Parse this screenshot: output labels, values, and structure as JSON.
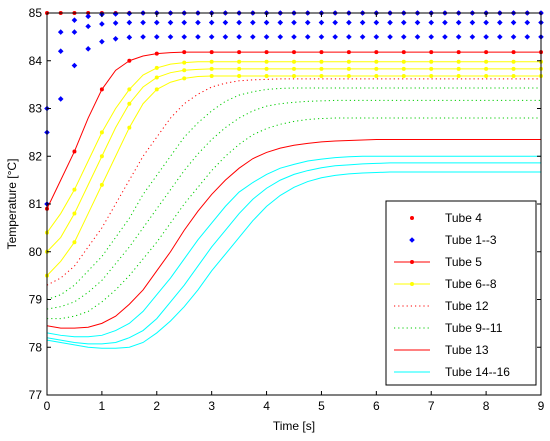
{
  "chart_data": {
    "type": "line",
    "title": "",
    "xlabel": "Time [s]",
    "ylabel": "Temperature [°C]",
    "xlim": [
      0,
      9
    ],
    "ylim": [
      77,
      85
    ],
    "xticks": [
      "0",
      "1",
      "2",
      "3",
      "4",
      "5",
      "6",
      "7",
      "8",
      "9"
    ],
    "yticks": [
      "77",
      "78",
      "79",
      "80",
      "81",
      "82",
      "83",
      "84",
      "85"
    ],
    "grid": false,
    "legend_position": "bottom-right",
    "legend": [
      {
        "label": "Tube 4",
        "color": "#ff0000",
        "line": "none",
        "marker": "dot"
      },
      {
        "label": "Tube 1--3",
        "color": "#0000ff",
        "line": "none",
        "marker": "diamond"
      },
      {
        "label": "Tube 5",
        "color": "#ff0000",
        "line": "solid",
        "marker": "dot"
      },
      {
        "label": "Tube 6--8",
        "color": "#ffff00",
        "line": "solid",
        "marker": "dot"
      },
      {
        "label": "Tube 12",
        "color": "#ff0000",
        "line": "dotted",
        "marker": "none"
      },
      {
        "label": "Tube 9--11",
        "color": "#00cc00",
        "line": "dotted",
        "marker": "none"
      },
      {
        "label": "Tube 13",
        "color": "#ff0000",
        "line": "solid",
        "marker": "none"
      },
      {
        "label": "Tube 14--16",
        "color": "#00ffff",
        "line": "solid",
        "marker": "none"
      }
    ],
    "x": [
      0,
      0.25,
      0.5,
      0.75,
      1,
      1.25,
      1.5,
      1.75,
      2,
      2.25,
      2.5,
      2.75,
      3,
      3.25,
      3.5,
      3.75,
      4,
      4.25,
      4.5,
      4.75,
      5,
      5.25,
      5.5,
      5.75,
      6,
      6.25,
      6.5,
      6.75,
      7,
      7.25,
      7.5,
      7.75,
      8,
      8.25,
      8.5,
      8.75,
      9
    ],
    "series": [
      {
        "legend_index": 0,
        "color": "#ff0000",
        "style": "markers",
        "marker": "dot",
        "values": [
          85.0,
          85.0,
          85.0,
          85.0,
          85.0,
          85.0,
          85.0,
          85.0,
          85.0,
          85.0,
          85.0,
          85.0,
          85.0,
          85.0,
          85.0,
          85.0,
          85.0,
          85.0,
          85.0,
          85.0,
          85.0,
          85.0,
          85.0,
          85.0,
          85.0,
          85.0,
          85.0,
          85.0,
          85.0,
          85.0,
          85.0,
          85.0,
          85.0,
          85.0,
          85.0,
          85.0,
          85.0
        ]
      },
      {
        "legend_index": 1,
        "color": "#0000ff",
        "style": "markers",
        "marker": "diamond",
        "values": [
          83.0,
          84.6,
          84.85,
          84.93,
          84.97,
          84.98,
          84.99,
          85.0,
          85.0,
          85.0,
          85.0,
          85.0,
          85.0,
          85.0,
          85.0,
          85.0,
          85.0,
          85.0,
          85.0,
          85.0,
          85.0,
          85.0,
          85.0,
          85.0,
          85.0,
          85.0,
          85.0,
          85.0,
          85.0,
          85.0,
          85.0,
          85.0,
          85.0,
          85.0,
          85.0,
          85.0,
          85.0
        ]
      },
      {
        "color": "#0000ff",
        "style": "markers",
        "marker": "diamond",
        "values": [
          82.5,
          84.2,
          84.6,
          84.72,
          84.77,
          84.79,
          84.8,
          84.8,
          84.8,
          84.8,
          84.8,
          84.8,
          84.8,
          84.8,
          84.8,
          84.8,
          84.8,
          84.8,
          84.8,
          84.8,
          84.8,
          84.8,
          84.8,
          84.8,
          84.8,
          84.8,
          84.8,
          84.8,
          84.8,
          84.8,
          84.8,
          84.8,
          84.8,
          84.8,
          84.8,
          84.8,
          84.8
        ]
      },
      {
        "color": "#0000ff",
        "style": "markers",
        "marker": "diamond",
        "values": [
          81.0,
          83.2,
          83.9,
          84.25,
          84.4,
          84.46,
          84.49,
          84.5,
          84.5,
          84.5,
          84.5,
          84.5,
          84.5,
          84.5,
          84.5,
          84.5,
          84.5,
          84.5,
          84.5,
          84.5,
          84.5,
          84.5,
          84.5,
          84.5,
          84.5,
          84.5,
          84.5,
          84.5,
          84.5,
          84.5,
          84.5,
          84.5,
          84.5,
          84.5,
          84.5,
          84.5,
          84.5
        ]
      },
      {
        "legend_index": 2,
        "color": "#ff0000",
        "style": "line-markers",
        "marker": "dot",
        "values": [
          80.9,
          81.5,
          82.1,
          82.8,
          83.4,
          83.8,
          84.0,
          84.1,
          84.15,
          84.17,
          84.18,
          84.18,
          84.18,
          84.18,
          84.18,
          84.18,
          84.18,
          84.18,
          84.18,
          84.18,
          84.18,
          84.18,
          84.18,
          84.18,
          84.18,
          84.18,
          84.18,
          84.18,
          84.18,
          84.18,
          84.18,
          84.18,
          84.18,
          84.18,
          84.18,
          84.18,
          84.18
        ]
      },
      {
        "legend_index": 3,
        "color": "#ffff00",
        "style": "line-markers",
        "marker": "dot",
        "values": [
          80.4,
          80.8,
          81.3,
          81.9,
          82.5,
          83.0,
          83.4,
          83.7,
          83.85,
          83.93,
          83.96,
          83.98,
          83.98,
          83.98,
          83.98,
          83.98,
          83.98,
          83.98,
          83.98,
          83.98,
          83.98,
          83.98,
          83.98,
          83.98,
          83.98,
          83.98,
          83.98,
          83.98,
          83.98,
          83.98,
          83.98,
          83.98,
          83.98,
          83.98,
          83.98,
          83.98,
          83.98
        ]
      },
      {
        "color": "#ffff00",
        "style": "line-markers",
        "marker": "dot",
        "values": [
          80.0,
          80.3,
          80.8,
          81.4,
          82.0,
          82.6,
          83.1,
          83.45,
          83.65,
          83.75,
          83.8,
          83.82,
          83.83,
          83.83,
          83.83,
          83.83,
          83.83,
          83.83,
          83.83,
          83.83,
          83.83,
          83.83,
          83.83,
          83.83,
          83.83,
          83.83,
          83.83,
          83.83,
          83.83,
          83.83,
          83.83,
          83.83,
          83.83,
          83.83,
          83.83,
          83.83,
          83.83
        ]
      },
      {
        "color": "#ffff00",
        "style": "line-markers",
        "marker": "dot",
        "values": [
          79.5,
          79.8,
          80.2,
          80.8,
          81.4,
          82.0,
          82.6,
          83.1,
          83.4,
          83.55,
          83.63,
          83.67,
          83.68,
          83.68,
          83.68,
          83.68,
          83.68,
          83.68,
          83.68,
          83.68,
          83.68,
          83.68,
          83.68,
          83.68,
          83.68,
          83.68,
          83.68,
          83.68,
          83.68,
          83.68,
          83.68,
          83.68,
          83.68,
          83.68,
          83.68,
          83.68,
          83.68
        ]
      },
      {
        "legend_index": 4,
        "color": "#ff0000",
        "style": "dotted",
        "values": [
          79.3,
          79.45,
          79.7,
          80.1,
          80.5,
          81.0,
          81.5,
          82.0,
          82.4,
          82.8,
          83.1,
          83.3,
          83.45,
          83.53,
          83.58,
          83.6,
          83.61,
          83.62,
          83.62,
          83.62,
          83.62,
          83.62,
          83.62,
          83.62,
          83.62,
          83.62,
          83.62,
          83.62,
          83.62,
          83.62,
          83.62,
          83.62,
          83.62,
          83.62,
          83.62,
          83.62,
          83.62
        ]
      },
      {
        "legend_index": 5,
        "color": "#00cc00",
        "style": "dotted",
        "values": [
          79.0,
          79.1,
          79.3,
          79.6,
          79.9,
          80.3,
          80.7,
          81.2,
          81.6,
          82.0,
          82.4,
          82.7,
          82.95,
          83.15,
          83.28,
          83.35,
          83.4,
          83.42,
          83.43,
          83.43,
          83.43,
          83.43,
          83.43,
          83.43,
          83.43,
          83.43,
          83.43,
          83.43,
          83.43,
          83.43,
          83.43,
          83.43,
          83.43,
          83.43,
          83.43,
          83.43,
          83.43
        ]
      },
      {
        "color": "#00cc00",
        "style": "dotted",
        "values": [
          78.8,
          78.85,
          78.95,
          79.15,
          79.4,
          79.75,
          80.1,
          80.5,
          80.9,
          81.3,
          81.7,
          82.05,
          82.35,
          82.6,
          82.8,
          82.95,
          83.05,
          83.1,
          83.13,
          83.15,
          83.16,
          83.17,
          83.17,
          83.17,
          83.17,
          83.17,
          83.17,
          83.17,
          83.17,
          83.17,
          83.17,
          83.17,
          83.17,
          83.17,
          83.17,
          83.17,
          83.17
        ]
      },
      {
        "color": "#00cc00",
        "style": "dotted",
        "values": [
          78.6,
          78.6,
          78.65,
          78.75,
          78.95,
          79.2,
          79.5,
          79.85,
          80.2,
          80.6,
          81.0,
          81.35,
          81.7,
          82.0,
          82.25,
          82.45,
          82.58,
          82.67,
          82.73,
          82.77,
          82.79,
          82.8,
          82.8,
          82.8,
          82.8,
          82.8,
          82.8,
          82.8,
          82.8,
          82.8,
          82.8,
          82.8,
          82.8,
          82.8,
          82.8,
          82.8,
          82.8
        ]
      },
      {
        "legend_index": 6,
        "color": "#ff0000",
        "style": "solid",
        "values": [
          78.45,
          78.4,
          78.4,
          78.42,
          78.5,
          78.65,
          78.9,
          79.2,
          79.6,
          80.0,
          80.45,
          80.85,
          81.2,
          81.5,
          81.75,
          81.95,
          82.08,
          82.17,
          82.23,
          82.27,
          82.3,
          82.32,
          82.33,
          82.34,
          82.35,
          82.35,
          82.35,
          82.35,
          82.35,
          82.35,
          82.35,
          82.35,
          82.35,
          82.35,
          82.35,
          82.35,
          82.35
        ]
      },
      {
        "legend_index": 7,
        "color": "#00ffff",
        "style": "solid",
        "values": [
          78.3,
          78.25,
          78.22,
          78.22,
          78.25,
          78.35,
          78.5,
          78.75,
          79.1,
          79.45,
          79.85,
          80.25,
          80.6,
          80.95,
          81.25,
          81.45,
          81.62,
          81.75,
          81.83,
          81.9,
          81.94,
          81.97,
          81.99,
          82.0,
          82.0,
          82.0,
          82.0,
          82.0,
          82.0,
          82.0,
          82.0,
          82.0,
          82.0,
          82.0,
          82.0,
          82.0,
          82.0
        ]
      },
      {
        "color": "#00ffff",
        "style": "solid",
        "values": [
          78.2,
          78.15,
          78.1,
          78.07,
          78.07,
          78.1,
          78.2,
          78.35,
          78.6,
          78.95,
          79.3,
          79.7,
          80.1,
          80.45,
          80.8,
          81.1,
          81.33,
          81.5,
          81.62,
          81.7,
          81.76,
          81.8,
          81.82,
          81.84,
          81.85,
          81.86,
          81.86,
          81.86,
          81.86,
          81.86,
          81.86,
          81.86,
          81.86,
          81.86,
          81.86,
          81.86,
          81.86
        ]
      },
      {
        "color": "#00ffff",
        "style": "solid",
        "values": [
          78.15,
          78.1,
          78.05,
          78.0,
          77.98,
          77.98,
          78.0,
          78.1,
          78.3,
          78.55,
          78.85,
          79.2,
          79.6,
          79.95,
          80.3,
          80.65,
          80.95,
          81.18,
          81.35,
          81.47,
          81.55,
          81.6,
          81.63,
          81.65,
          81.66,
          81.67,
          81.67,
          81.67,
          81.67,
          81.67,
          81.67,
          81.67,
          81.67,
          81.67,
          81.67,
          81.67,
          81.67
        ]
      }
    ]
  }
}
